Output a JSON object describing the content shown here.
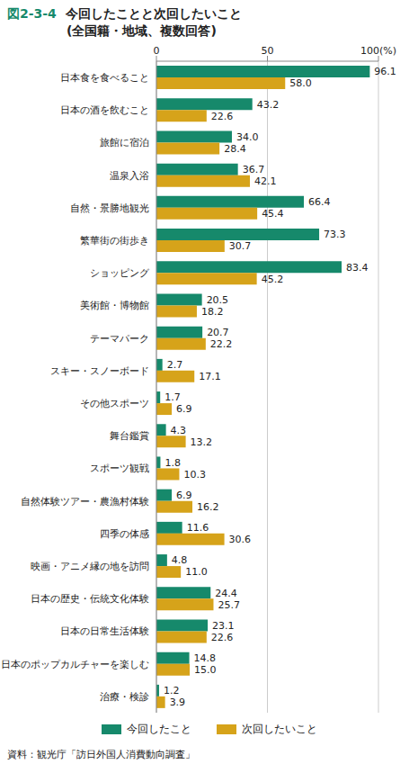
{
  "chart_data": {
    "type": "bar",
    "orientation": "horizontal",
    "figure": "図2-3-4",
    "title": "今回したことと次回したいこと",
    "subtitle": "(全国籍・地域、複数回答)",
    "source": "資料：観光庁「訪日外国人消費動向調査」",
    "categories": [
      "日本食を食べること",
      "日本の酒を飲むこと",
      "旅館に宿泊",
      "温泉入浴",
      "自然・景勝地観光",
      "繁華街の街歩き",
      "ショッピング",
      "美術館・博物館",
      "テーマパーク",
      "スキー・スノーボード",
      "その他スポーツ",
      "舞台鑑賞",
      "スポーツ観戦",
      "自然体験ツアー・農漁村体験",
      "四季の体感",
      "映画・アニメ縁の地を訪問",
      "日本の歴史・伝統文化体験",
      "日本の日常生活体験",
      "日本のポップカルチャーを楽しむ",
      "治療・検診"
    ],
    "series": [
      {
        "name": "今回したこと",
        "color": "#16896b",
        "values": [
          96.1,
          43.2,
          34.0,
          36.7,
          66.4,
          73.3,
          83.4,
          20.5,
          20.7,
          2.7,
          1.7,
          4.3,
          1.8,
          6.9,
          11.6,
          4.8,
          24.4,
          23.1,
          14.8,
          1.2
        ],
        "value_labels": [
          "96.1",
          "43.2",
          "34.0",
          "36.7",
          "66.4",
          "73.3",
          "83.4",
          "20.5",
          "20.7",
          "2.7",
          "1.7",
          "4.3",
          "1.8",
          "6.9",
          "11.6",
          "4.8",
          "24.4",
          "23.1",
          "14.8",
          "1.2"
        ]
      },
      {
        "name": "次回したいこと",
        "color": "#d6a31a",
        "values": [
          58.0,
          22.6,
          28.4,
          42.1,
          45.4,
          30.7,
          45.2,
          18.2,
          22.2,
          17.1,
          6.9,
          13.2,
          10.3,
          16.2,
          30.6,
          11.0,
          25.7,
          22.6,
          15.0,
          3.9
        ],
        "value_labels": [
          "58.0",
          "22.6",
          "28.4",
          "42.1",
          "45.4",
          "30.7",
          "45.2",
          "18.2",
          "22.2",
          "17.1",
          "6.9",
          "13.2",
          "10.3",
          "16.2",
          "30.6",
          "11.0",
          "25.7",
          "22.6",
          "15.0",
          "3.9"
        ]
      }
    ],
    "xlim": [
      0,
      100
    ],
    "xticks": [
      0,
      50,
      {
        "value": 100,
        "label": "100(%)"
      }
    ],
    "grid": true,
    "data_labels": true,
    "legend": "bottom"
  }
}
